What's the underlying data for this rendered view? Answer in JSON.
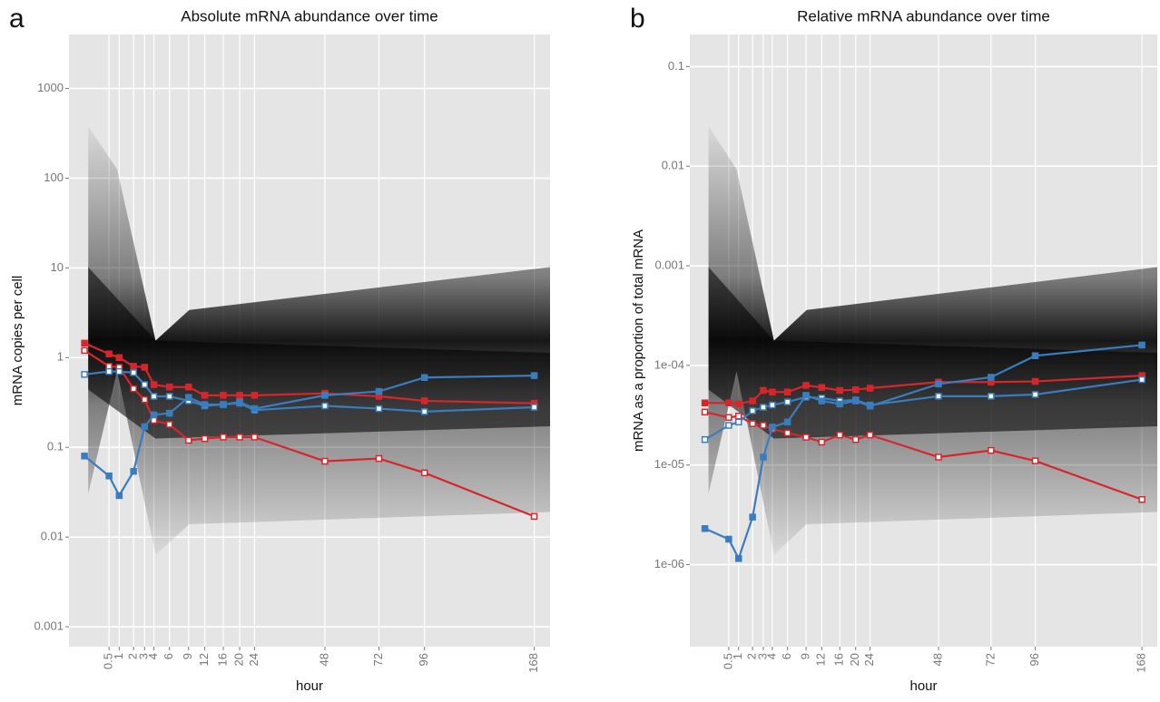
{
  "chart_data": [
    {
      "type": "line",
      "panel_label": "a",
      "title": "Absolute mRNA abundance over time",
      "x_label": "hour",
      "y_label": "mRNA copies per cell",
      "xscale": "sqrt",
      "yscale": "log",
      "grid": true,
      "x": [
        0,
        0.5,
        1,
        2,
        3,
        4,
        6,
        9,
        12,
        16,
        20,
        24,
        48,
        72,
        96,
        168
      ],
      "xlim": [
        -0.2,
        180
      ],
      "xticks": [
        0.5,
        1,
        2,
        3,
        4,
        6,
        9,
        12,
        16,
        20,
        24,
        48,
        72,
        96,
        168
      ],
      "ylim": [
        0.0006,
        4000
      ],
      "yticks": [
        0.001,
        0.01,
        0.1,
        1,
        10,
        100,
        1000
      ],
      "series": [
        {
          "color": "#d7262b",
          "marker_fill": "filled",
          "values": [
            1.45,
            1.1,
            1.0,
            0.8,
            0.78,
            0.5,
            0.47,
            0.47,
            0.38,
            0.38,
            0.38,
            0.38,
            0.4,
            0.37,
            0.33,
            0.31
          ]
        },
        {
          "color": "#d7262b",
          "marker_fill": "hollow",
          "values": [
            1.2,
            0.8,
            0.78,
            0.45,
            0.34,
            0.2,
            0.18,
            0.12,
            0.125,
            0.13,
            0.13,
            0.13,
            0.07,
            0.075,
            0.052,
            0.017
          ]
        },
        {
          "color": "#3a7dbf",
          "marker_fill": "hollow",
          "values": [
            0.65,
            0.7,
            0.7,
            0.68,
            0.5,
            0.37,
            0.37,
            0.33,
            0.29,
            0.3,
            0.31,
            0.26,
            0.29,
            0.27,
            0.25,
            0.28
          ]
        },
        {
          "color": "#3a7dbf",
          "marker_fill": "filled",
          "values": [
            0.08,
            0.048,
            0.029,
            0.054,
            0.17,
            0.23,
            0.24,
            0.36,
            0.3,
            0.3,
            0.32,
            0.27,
            0.38,
            0.42,
            0.6,
            0.63
          ]
        }
      ]
    },
    {
      "type": "line",
      "panel_label": "b",
      "title": "Relative mRNA abundance over time",
      "x_label": "hour",
      "y_label": "mRNA as a proportion of total mRNA",
      "xscale": "sqrt",
      "yscale": "log",
      "grid": true,
      "x": [
        0,
        0.5,
        1,
        2,
        3,
        4,
        6,
        9,
        12,
        16,
        20,
        24,
        48,
        72,
        96,
        168
      ],
      "xlim": [
        -0.2,
        180
      ],
      "xticks": [
        0.5,
        1,
        2,
        3,
        4,
        6,
        9,
        12,
        16,
        20,
        24,
        48,
        72,
        96,
        168
      ],
      "ylim": [
        1.5e-07,
        0.21
      ],
      "yticks": [
        {
          "value": 1e-06,
          "label": "1e-06"
        },
        {
          "value": 1e-05,
          "label": "1e-05"
        },
        {
          "value": 0.0001,
          "label": "1e-04"
        },
        0.001,
        0.01,
        0.1
      ],
      "series": [
        {
          "color": "#d7262b",
          "marker_fill": "filled",
          "values": [
            4.2e-05,
            4.2e-05,
            4.1e-05,
            4.4e-05,
            5.6e-05,
            5.4e-05,
            5.4e-05,
            6.3e-05,
            6e-05,
            5.6e-05,
            5.7e-05,
            5.9e-05,
            6.8e-05,
            6.8e-05,
            6.9e-05,
            7.9e-05
          ]
        },
        {
          "color": "#d7262b",
          "marker_fill": "hollow",
          "values": [
            3.4e-05,
            3e-05,
            3.1e-05,
            2.6e-05,
            2.5e-05,
            2.3e-05,
            2.1e-05,
            1.9e-05,
            1.7e-05,
            2e-05,
            1.8e-05,
            2e-05,
            1.2e-05,
            1.4e-05,
            1.1e-05,
            4.5e-06
          ]
        },
        {
          "color": "#3a7dbf",
          "marker_fill": "hollow",
          "values": [
            1.8e-05,
            2.5e-05,
            2.7e-05,
            3.5e-05,
            3.8e-05,
            4e-05,
            4.3e-05,
            4.8e-05,
            4.7e-05,
            4.4e-05,
            4.5e-05,
            4e-05,
            4.9e-05,
            4.9e-05,
            5.1e-05,
            7.2e-05
          ]
        },
        {
          "color": "#3a7dbf",
          "marker_fill": "filled",
          "values": [
            2.3e-06,
            1.8e-06,
            1.15e-06,
            3e-06,
            1.2e-05,
            2.4e-05,
            2.7e-05,
            5e-05,
            4.4e-05,
            4.1e-05,
            4.4e-05,
            3.9e-05,
            6.5e-05,
            7.6e-05,
            0.000125,
            0.00016
          ]
        }
      ]
    }
  ]
}
